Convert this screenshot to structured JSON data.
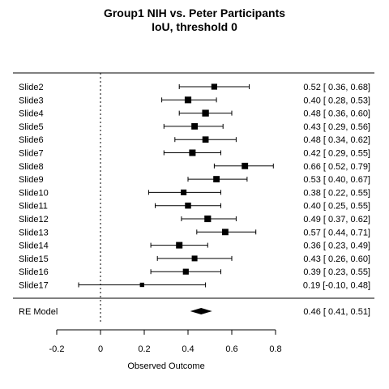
{
  "chart_data": {
    "type": "forest",
    "title": "Group1 NIH vs. Peter Participants",
    "subtitle": "IoU, threshold 0",
    "xlabel": "Observed Outcome",
    "xlim": [
      -0.2,
      0.8
    ],
    "xticks": [
      -0.2,
      0,
      0.2,
      0.4,
      0.6,
      0.8
    ],
    "xtick_labels": [
      "-0.2",
      "0",
      "0.2",
      "0.4",
      "0.6",
      "0.8"
    ],
    "reference_line": 0,
    "studies": [
      {
        "label": "Slide2",
        "estimate": 0.52,
        "ci_low": 0.36,
        "ci_high": 0.68,
        "text": "0.52 [ 0.36, 0.68]"
      },
      {
        "label": "Slide3",
        "estimate": 0.4,
        "ci_low": 0.28,
        "ci_high": 0.53,
        "text": "0.40 [ 0.28, 0.53]"
      },
      {
        "label": "Slide4",
        "estimate": 0.48,
        "ci_low": 0.36,
        "ci_high": 0.6,
        "text": "0.48 [ 0.36, 0.60]"
      },
      {
        "label": "Slide5",
        "estimate": 0.43,
        "ci_low": 0.29,
        "ci_high": 0.56,
        "text": "0.43 [ 0.29, 0.56]"
      },
      {
        "label": "Slide6",
        "estimate": 0.48,
        "ci_low": 0.34,
        "ci_high": 0.62,
        "text": "0.48 [ 0.34, 0.62]"
      },
      {
        "label": "Slide7",
        "estimate": 0.42,
        "ci_low": 0.29,
        "ci_high": 0.55,
        "text": "0.42 [ 0.29, 0.55]"
      },
      {
        "label": "Slide8",
        "estimate": 0.66,
        "ci_low": 0.52,
        "ci_high": 0.79,
        "text": "0.66 [ 0.52, 0.79]"
      },
      {
        "label": "Slide9",
        "estimate": 0.53,
        "ci_low": 0.4,
        "ci_high": 0.67,
        "text": "0.53 [ 0.40, 0.67]"
      },
      {
        "label": "Slide10",
        "estimate": 0.38,
        "ci_low": 0.22,
        "ci_high": 0.55,
        "text": "0.38 [ 0.22, 0.55]"
      },
      {
        "label": "Slide11",
        "estimate": 0.4,
        "ci_low": 0.25,
        "ci_high": 0.55,
        "text": "0.40 [ 0.25, 0.55]"
      },
      {
        "label": "Slide12",
        "estimate": 0.49,
        "ci_low": 0.37,
        "ci_high": 0.62,
        "text": "0.49 [ 0.37, 0.62]"
      },
      {
        "label": "Slide13",
        "estimate": 0.57,
        "ci_low": 0.44,
        "ci_high": 0.71,
        "text": "0.57 [ 0.44, 0.71]"
      },
      {
        "label": "Slide14",
        "estimate": 0.36,
        "ci_low": 0.23,
        "ci_high": 0.49,
        "text": "0.36 [ 0.23, 0.49]"
      },
      {
        "label": "Slide15",
        "estimate": 0.43,
        "ci_low": 0.26,
        "ci_high": 0.6,
        "text": "0.43 [ 0.26, 0.60]"
      },
      {
        "label": "Slide16",
        "estimate": 0.39,
        "ci_low": 0.23,
        "ci_high": 0.55,
        "text": "0.39 [ 0.23, 0.55]"
      },
      {
        "label": "Slide17",
        "estimate": 0.19,
        "ci_low": -0.1,
        "ci_high": 0.48,
        "text": "0.19 [-0.10, 0.48]"
      }
    ],
    "summary": {
      "label": "RE Model",
      "estimate": 0.46,
      "ci_low": 0.41,
      "ci_high": 0.51,
      "text": "0.46 [ 0.41, 0.51]"
    },
    "colors": {
      "ink": "#000000"
    }
  }
}
